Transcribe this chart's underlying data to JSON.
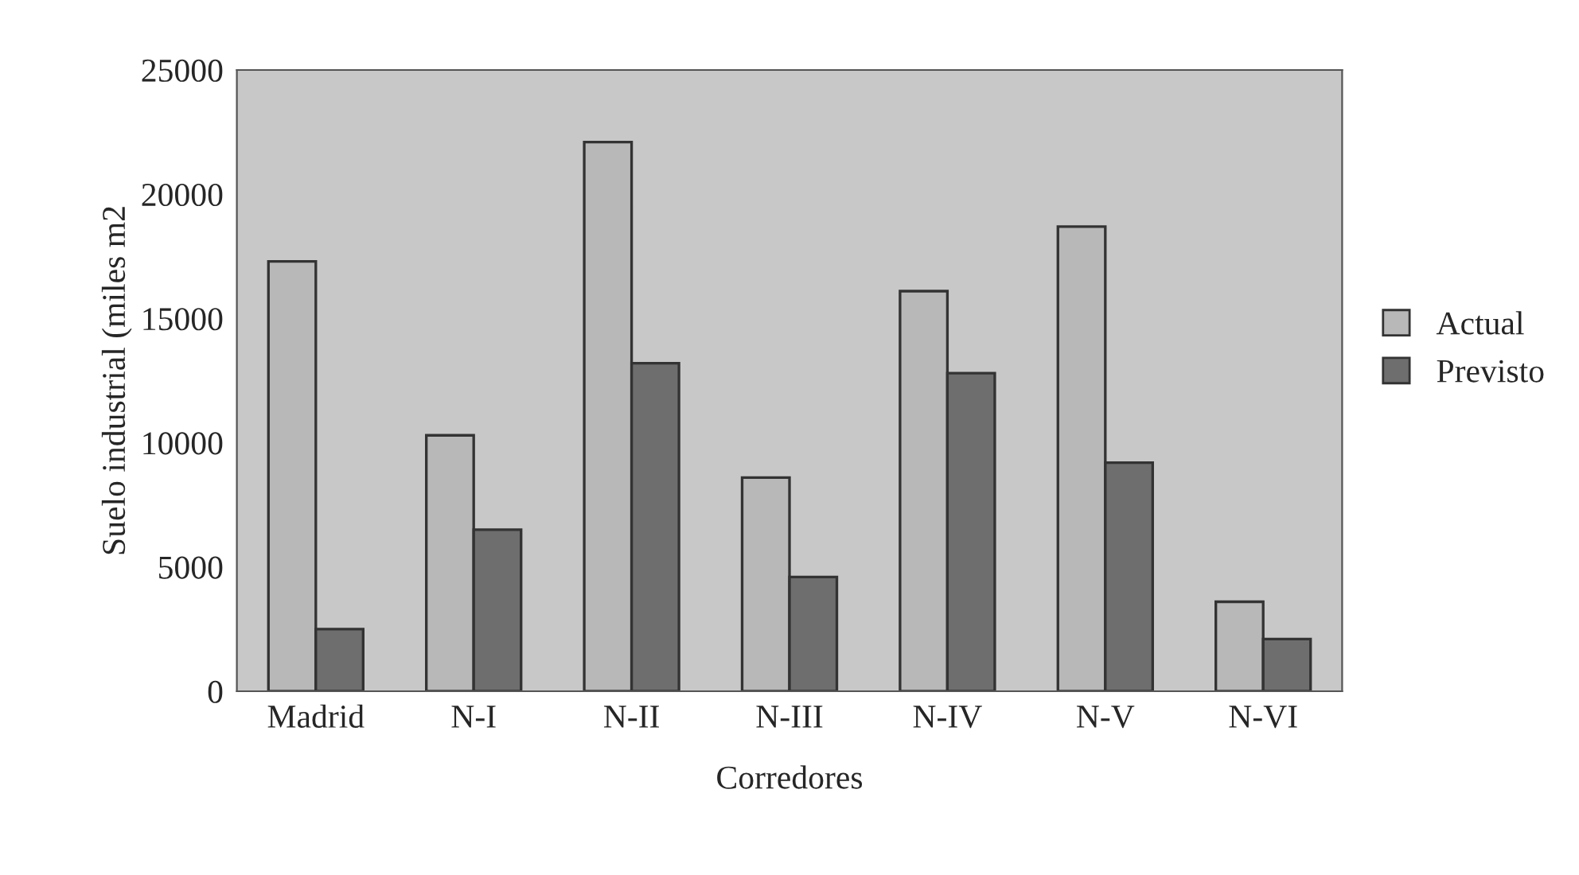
{
  "chart_data": {
    "type": "bar",
    "xlabel": "Corredores",
    "ylabel": "Suelo industrial (miles m2",
    "categories": [
      "Madrid",
      "N-I",
      "N-II",
      "N-III",
      "N-IV",
      "N-V",
      "N-VI"
    ],
    "series": [
      {
        "name": "Actual",
        "color": "#b8b8b8",
        "values": [
          17300,
          10300,
          22100,
          8600,
          16100,
          18700,
          3600
        ]
      },
      {
        "name": "Previsto",
        "color": "#6e6e6e",
        "values": [
          2500,
          6500,
          13200,
          4600,
          12800,
          9200,
          2100
        ]
      }
    ],
    "ylim": [
      0,
      25000
    ],
    "yticks": [
      0,
      5000,
      10000,
      15000,
      20000,
      25000
    ],
    "legend": "right"
  }
}
